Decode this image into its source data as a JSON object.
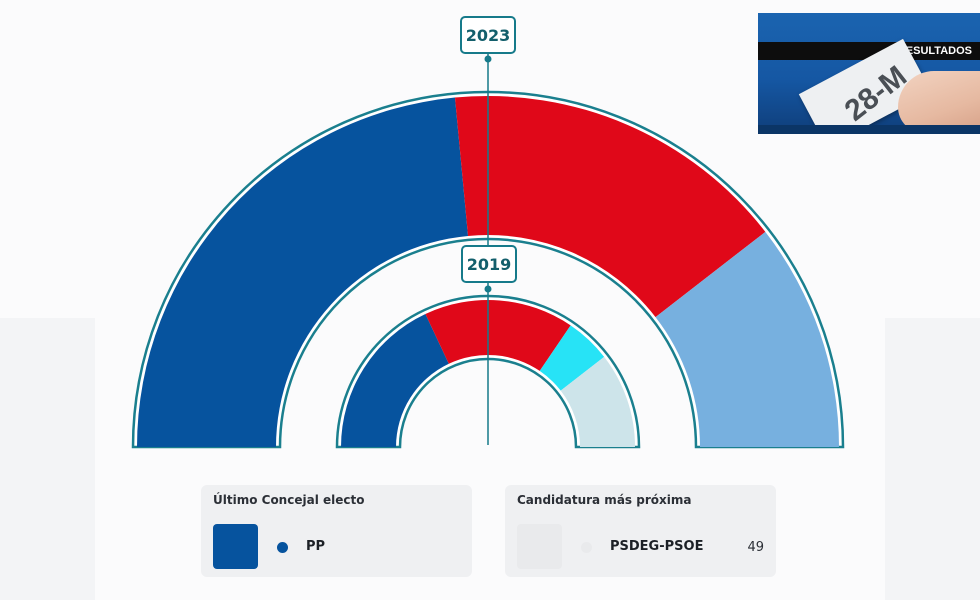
{
  "chart_data": [
    {
      "type": "semicircle",
      "label": "2023",
      "segments": [
        {
          "party": "PP",
          "share": 0.47,
          "color": "#06539e"
        },
        {
          "party": "PSDEG-PSOE",
          "share": 0.32,
          "color": "#e00819"
        },
        {
          "party": "",
          "share": 0.21,
          "color": "#77b0df"
        }
      ]
    },
    {
      "type": "semicircle",
      "label": "2019",
      "segments": [
        {
          "party": "PP",
          "share": 0.36,
          "color": "#06539e"
        },
        {
          "party": "PSDEG-PSOE",
          "share": 0.33,
          "color": "#e00819"
        },
        {
          "party": "",
          "share": 0.1,
          "color": "#27e3f6"
        },
        {
          "party": "",
          "share": 0.21,
          "color": "#cde4ea"
        }
      ]
    }
  ],
  "banner": {
    "title": "RESULTADOS",
    "ballot_text": "28-M"
  },
  "cards": {
    "last_elected": {
      "title": "Último Concejal electo",
      "party": "PP",
      "color": "#06539e"
    },
    "closest": {
      "title": "Candidatura más próxima",
      "party": "PSDEG-PSOE",
      "votes": "49",
      "color": "#e9eaec"
    }
  },
  "colors": {
    "outline": "#1a7f8e"
  }
}
